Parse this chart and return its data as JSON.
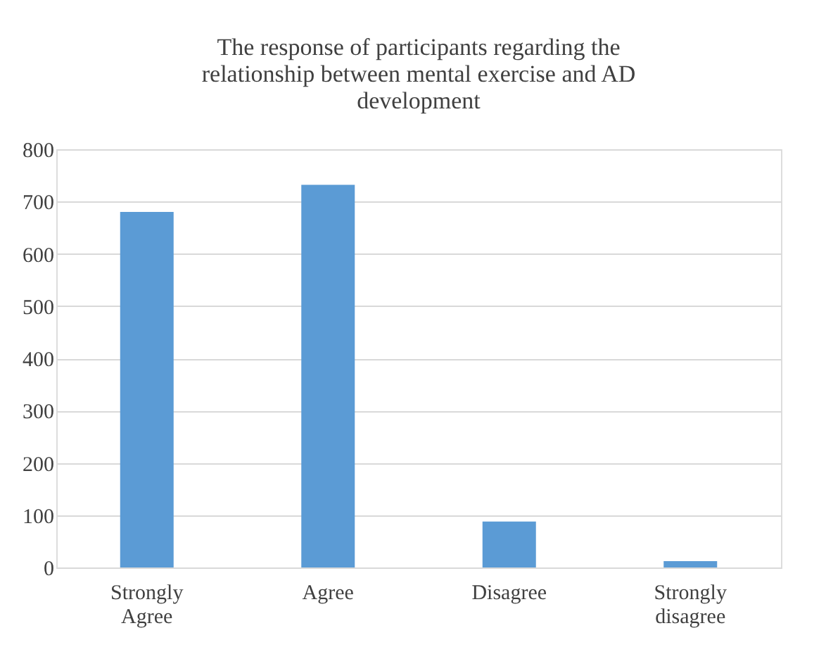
{
  "chart_data": {
    "type": "bar",
    "title": "The response of participants regarding the\nrelationship between mental exercise and AD\ndevelopment",
    "categories": [
      "Strongly\nAgree",
      "Agree",
      "Disagree",
      "Strongly\ndisagree"
    ],
    "values": [
      680,
      732,
      88,
      12
    ],
    "color": "#5b9bd5",
    "ylim": [
      0,
      800
    ],
    "yticks": [
      0,
      100,
      200,
      300,
      400,
      500,
      600,
      700,
      800
    ],
    "grid": "y"
  }
}
